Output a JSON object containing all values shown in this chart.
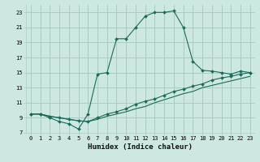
{
  "xlabel": "Humidex (Indice chaleur)",
  "bg_color": "#cce8e0",
  "grid_color": "#aaccc4",
  "line_color": "#1a6b5a",
  "xlim": [
    -0.5,
    23.5
  ],
  "ylim": [
    7,
    24
  ],
  "xticks": [
    0,
    1,
    2,
    3,
    4,
    5,
    6,
    7,
    8,
    9,
    10,
    11,
    12,
    13,
    14,
    15,
    16,
    17,
    18,
    19,
    20,
    21,
    22,
    23
  ],
  "yticks": [
    7,
    9,
    11,
    13,
    15,
    17,
    19,
    21,
    23
  ],
  "curve1_x": [
    0,
    1,
    2,
    3,
    4,
    5,
    6,
    7,
    8,
    9,
    10,
    11,
    12,
    13,
    14,
    15,
    16,
    17,
    18,
    19,
    20,
    21,
    22,
    23
  ],
  "curve1_y": [
    9.5,
    9.5,
    9.0,
    8.5,
    8.2,
    7.5,
    9.5,
    14.8,
    15.0,
    19.5,
    19.5,
    21.0,
    22.5,
    23.0,
    23.0,
    23.2,
    21.0,
    16.5,
    15.3,
    15.2,
    15.0,
    14.8,
    15.2,
    15.0
  ],
  "curve2_x": [
    0,
    1,
    2,
    3,
    4,
    5,
    6,
    7,
    8,
    9,
    10,
    11,
    12,
    13,
    14,
    15,
    16,
    17,
    18,
    19,
    20,
    21,
    22,
    23
  ],
  "curve2_y": [
    9.5,
    9.5,
    9.2,
    9.0,
    8.8,
    8.6,
    8.5,
    9.0,
    9.5,
    9.8,
    10.2,
    10.8,
    11.2,
    11.5,
    12.0,
    12.5,
    12.8,
    13.2,
    13.5,
    14.0,
    14.3,
    14.5,
    14.8,
    15.0
  ],
  "curve3_x": [
    0,
    1,
    2,
    3,
    4,
    5,
    6,
    7,
    8,
    9,
    10,
    11,
    12,
    13,
    14,
    15,
    16,
    17,
    18,
    19,
    20,
    21,
    22,
    23
  ],
  "curve3_y": [
    9.5,
    9.5,
    9.2,
    9.0,
    8.8,
    8.6,
    8.5,
    8.8,
    9.2,
    9.5,
    9.8,
    10.2,
    10.5,
    11.0,
    11.4,
    11.8,
    12.2,
    12.5,
    13.0,
    13.3,
    13.6,
    13.9,
    14.2,
    14.5
  ],
  "xlabel_fontsize": 6.5,
  "tick_fontsize": 5.0
}
